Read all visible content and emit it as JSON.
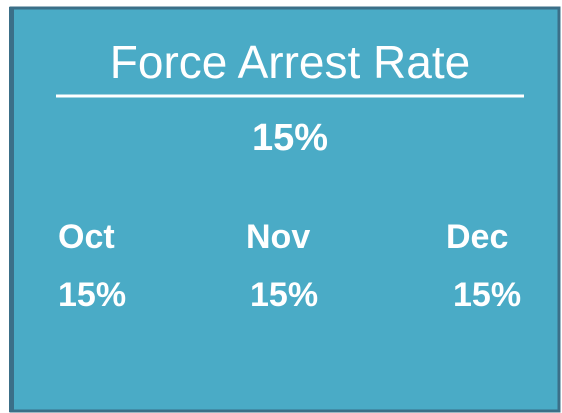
{
  "card": {
    "title": "Force Arrest Rate",
    "value": "15%",
    "months": [
      {
        "label": "Oct",
        "value": "15%"
      },
      {
        "label": "Nov",
        "value": "15%"
      },
      {
        "label": "Dec",
        "value": "15%"
      }
    ]
  }
}
